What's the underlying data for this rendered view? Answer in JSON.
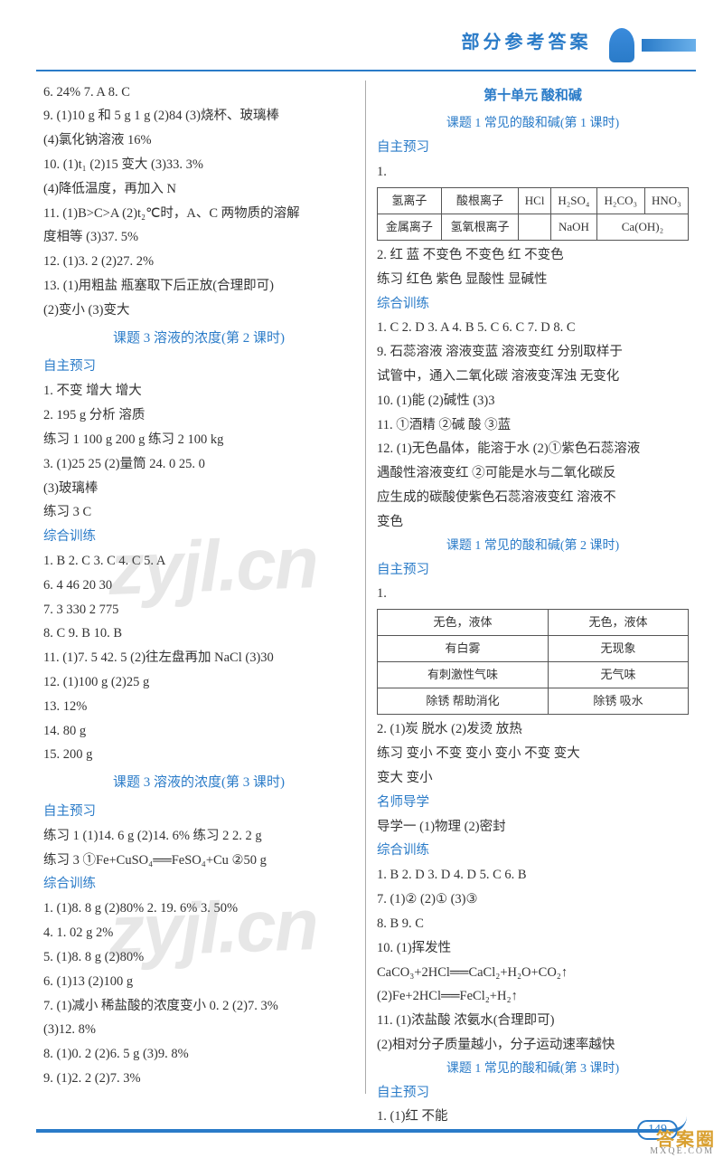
{
  "header": {
    "title": "部分参考答案"
  },
  "left": {
    "l1": "6. 24%   7. A   8. C",
    "l2": "9. (1)10 g 和 5 g  1 g  (2)84  (3)烧杯、玻璃棒",
    "l3": "  (4)氯化钠溶液  16%",
    "l4": "10. (1)t₁  (2)15  变大  (3)33. 3%",
    "l5": "  (4)降低温度，再加入 N",
    "l6": "11. (1)B>C>A  (2)t₂℃时，A、C 两物质的溶解",
    "l7": "  度相等  (3)37. 5%",
    "l8": "12. (1)3. 2  (2)27. 2%",
    "l9": "13. (1)用粗盐  瓶塞取下后正放(合理即可)",
    "l10": "  (2)变小  (3)变大",
    "sec1": "课题 3  溶液的浓度(第 2 课时)",
    "zzyx1": "自主预习",
    "l11": "1. 不变  增大  增大",
    "l12": "2. 195 g  分析  溶质",
    "l13": "练习 1  100 g  200 g  练习 2  100 kg",
    "l14": "3. (1)25  25  (2)量筒  24. 0  25. 0",
    "l15": "  (3)玻璃棒",
    "l16": "练习 3  C",
    "zhxl1": "综合训练",
    "l17": "1. B  2. C  3. C  4. C  5. A",
    "l18": "6. 4  46  20  30",
    "l19": "7. 3 330  2 775",
    "l20": "8. C  9. B  10. B",
    "l21": "11. (1)7. 5  42. 5  (2)往左盘再加 NaCl  (3)30",
    "l22": "12. (1)100 g  (2)25 g",
    "l23": "13. 12%",
    "l24": "14. 80 g",
    "l25": "15. 200 g",
    "sec2": "课题 3  溶液的浓度(第 3 课时)",
    "zzyx2": "自主预习",
    "l26": "练习 1  (1)14. 6 g  (2)14. 6%  练习 2  2. 2 g",
    "l27": "练习 3  ①Fe+CuSO₄══FeSO₄+Cu  ②50 g",
    "zhxl2": "综合训练",
    "l28": "1. (1)8. 8 g  (2)80%  2. 19. 6%  3. 50%",
    "l29": "4. 1. 02 g  2%",
    "l30": "5. (1)8. 8 g  (2)80%",
    "l31": "6. (1)13  (2)100 g",
    "l32": "7. (1)减小  稀盐酸的浓度变小  0. 2  (2)7. 3%",
    "l33": "  (3)12. 8%",
    "l34": "8. (1)0. 2  (2)6. 5 g  (3)9. 8%",
    "l35": "9. (1)2. 2  (2)7. 3%"
  },
  "right": {
    "unit": "第十单元  酸和碱",
    "sec1": "课题 1  常见的酸和碱(第 1 课时)",
    "zzyx1": "自主预习",
    "l1": "1.",
    "table1": {
      "r1": [
        "氢离子",
        "酸根离子",
        "HCl",
        "H₂SO₄",
        "H₂CO₃",
        "HNO₃"
      ],
      "r2": [
        "金属离子",
        "氢氧根离子",
        "",
        "NaOH",
        "Ca(OH)₂",
        ""
      ]
    },
    "l2": "2. 红  蓝  不变色  不变色  红  不变色",
    "l3": "练习  红色  紫色  显酸性  显碱性",
    "zhxl1": "综合训练",
    "l4": "1. C  2. D  3. A  4. B  5. C  6. C  7. D  8. C",
    "l5": "9. 石蕊溶液  溶液变蓝  溶液变红  分别取样于",
    "l6": "  试管中，通入二氧化碳  溶液变浑浊  无变化",
    "l7": "10. (1)能  (2)碱性  (3)3",
    "l8": "11. ①酒精  ②碱  酸  ③蓝",
    "l9": "12. (1)无色晶体，能溶于水  (2)①紫色石蕊溶液",
    "l10": "  遇酸性溶液变红  ②可能是水与二氧化碳反",
    "l11": "  应生成的碳酸使紫色石蕊溶液变红  溶液不",
    "l12": "  变色",
    "sec2": "课题 1  常见的酸和碱(第 2 课时)",
    "zzyx2": "自主预习",
    "l13": "1.",
    "table2": {
      "r1": [
        "无色，液体",
        "无色，液体"
      ],
      "r2": [
        "有白雾",
        "无现象"
      ],
      "r3": [
        "有刺激性气味",
        "无气味"
      ],
      "r4": [
        "除锈  帮助消化",
        "除锈  吸水"
      ]
    },
    "l14": "2. (1)炭  脱水  (2)发烫  放热",
    "l15": "练习  变小  不变  变小  变小  不变  变大",
    "l16": "  变大  变小",
    "msdx": "名师导学",
    "l17": "导学一  (1)物理  (2)密封",
    "zhxl2": "综合训练",
    "l18": "1. B  2. D  3. D  4. D  5. C  6. B",
    "l19": "7. (1)②  (2)①  (3)③",
    "l20": "8. B  9. C",
    "l21": "10. (1)挥发性",
    "l22": "  CaCO₃+2HCl══CaCl₂+H₂O+CO₂↑",
    "l23": "  (2)Fe+2HCl══FeCl₂+H₂↑",
    "l24": "11. (1)浓盐酸  浓氨水(合理即可)",
    "l25": "  (2)相对分子质量越小，分子运动速率越快",
    "sec3": "课题 1  常见的酸和碱(第 3 课时)",
    "zzyx3": "自主预习",
    "l26": "1. (1)红  不能"
  },
  "pageNumber": "149",
  "corner": "答案圈",
  "cornerSub": "MXQE.COM"
}
